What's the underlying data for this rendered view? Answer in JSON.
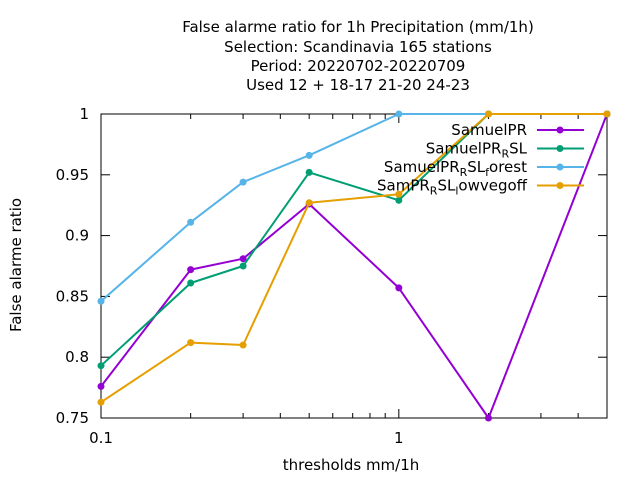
{
  "chart_data": {
    "type": "line",
    "title_lines": [
      "False alarme ratio  for 1h Precipitation (mm/1h)",
      "Selection: Scandinavia    165 stations",
      "Period: 20220702-20220709",
      "Used  12 + 18-17 21-20 24-23"
    ],
    "xlabel": "thresholds mm/1h",
    "ylabel": "False alarme ratio",
    "x_scale": "log",
    "xlim": [
      0.1,
      5
    ],
    "ylim": [
      0.75,
      1.0
    ],
    "x_ticks": [
      {
        "value": 0.1,
        "label": "0.1"
      },
      {
        "value": 1,
        "label": "1"
      }
    ],
    "y_ticks": [
      {
        "value": 0.75,
        "label": "0.75"
      },
      {
        "value": 0.8,
        "label": "0.8"
      },
      {
        "value": 0.85,
        "label": "0.85"
      },
      {
        "value": 0.9,
        "label": "0.9"
      },
      {
        "value": 0.95,
        "label": "0.95"
      },
      {
        "value": 1.0,
        "label": "1"
      }
    ],
    "grid": false,
    "legend_position": "top-right",
    "x": [
      0.1,
      0.2,
      0.3,
      0.5,
      1,
      2,
      5
    ],
    "series": [
      {
        "name": "SamuelPR",
        "legend": {
          "base": "SamuelPR",
          "parts": []
        },
        "color": "#9400d3",
        "values": [
          0.776,
          0.872,
          0.881,
          0.926,
          0.857,
          0.75,
          1.0
        ]
      },
      {
        "name": "SamuelPR_RSL",
        "legend": {
          "base": "SamuelPR",
          "parts": [
            {
              "sub": "R"
            },
            {
              "text": "SL"
            }
          ]
        },
        "color": "#009e73",
        "values": [
          0.793,
          0.861,
          0.875,
          0.952,
          0.929,
          1.0,
          1.0
        ]
      },
      {
        "name": "SamuelPR_RSL_forest",
        "legend": {
          "base": "SamuelPR",
          "parts": [
            {
              "sub": "R"
            },
            {
              "text": "SL"
            },
            {
              "sub": "f"
            },
            {
              "text": "orest"
            }
          ]
        },
        "color": "#56b4e9",
        "values": [
          0.846,
          0.911,
          0.944,
          0.966,
          1.0,
          1.0,
          1.0
        ]
      },
      {
        "name": "SamPR_RSL_lowvegoff",
        "legend": {
          "base": "SamPR",
          "parts": [
            {
              "sub": "R"
            },
            {
              "text": "SL"
            },
            {
              "sub": "l"
            },
            {
              "text": "owvegoff"
            }
          ]
        },
        "color": "#e69f00",
        "values": [
          0.763,
          0.812,
          0.81,
          0.927,
          0.934,
          1.0,
          1.0
        ]
      }
    ]
  }
}
